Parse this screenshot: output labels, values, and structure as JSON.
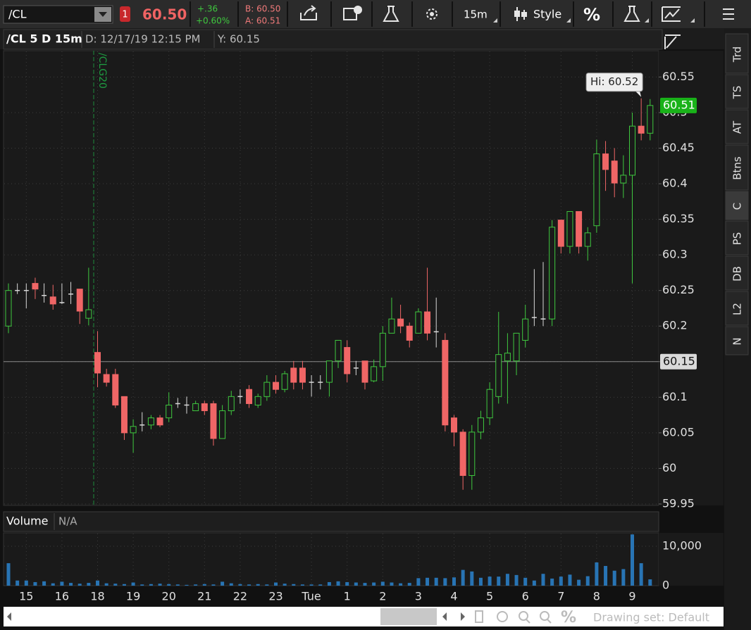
{
  "toolbar": {
    "symbol": "/CL",
    "alert_count": "1",
    "last": "60.50",
    "change": "+.36",
    "change_pct": "+0.60%",
    "bid": "B: 60.50",
    "ask": "A: 60.51",
    "interval": "15m",
    "style": "Style",
    "percent": "%"
  },
  "header": {
    "title": "/CL 5 D 15m",
    "date": "D: 12/17/19 12:15 PM",
    "y_value": "Y: 60.15"
  },
  "side_tabs": [
    "Trd",
    "TS",
    "AT",
    "Btns",
    "C",
    "PS",
    "DB",
    "L2",
    "N"
  ],
  "footer": {
    "drawing_set": "Drawing set: Default",
    "percent": "%"
  },
  "chart_data": [
    {
      "type": "candlestick",
      "categories": [
        null,
        null,
        "15",
        null,
        null,
        null,
        "16",
        null,
        null,
        null,
        "18",
        null,
        null,
        null,
        "19",
        null,
        null,
        null,
        "20",
        null,
        null,
        null,
        "21",
        null,
        null,
        null,
        "22",
        null,
        null,
        null,
        "23",
        null,
        null,
        null,
        "Tue",
        null,
        null,
        null,
        "1",
        null,
        null,
        null,
        "2",
        null,
        null,
        null,
        "3",
        null,
        null,
        null,
        "4",
        null,
        null,
        null,
        "5",
        null,
        null,
        null,
        "6",
        null,
        null,
        null,
        "7",
        null,
        null,
        null,
        "8",
        null,
        null,
        null,
        "9",
        null,
        null
      ],
      "open": [
        60.2,
        60.25,
        60.25,
        60.26,
        60.243,
        60.241,
        60.233,
        60.245,
        60.252,
        60.211,
        60.163,
        60.132,
        60.132,
        60.101,
        60.05,
        60.061,
        60.061,
        60.071,
        60.071,
        60.091,
        60.089,
        60.081,
        60.091,
        60.091,
        60.042,
        60.081,
        60.101,
        60.111,
        60.089,
        60.101,
        60.121,
        60.111,
        60.141,
        60.141,
        60.121,
        60.121,
        60.121,
        60.151,
        60.17,
        60.141,
        60.151,
        60.123,
        60.143,
        60.19,
        60.21,
        60.2,
        60.19,
        60.22,
        60.192,
        60.18,
        60.071,
        60.051,
        59.99,
        60.051,
        60.071,
        60.101,
        60.151,
        60.151,
        60.18,
        60.212,
        60.21,
        60.21,
        60.349,
        60.312,
        60.361,
        60.312,
        60.341,
        60.442,
        60.432,
        60.401,
        60.412,
        60.481,
        60.471
      ],
      "high": [
        60.26,
        60.26,
        60.26,
        60.268,
        60.26,
        60.258,
        60.26,
        60.262,
        60.252,
        60.282,
        60.193,
        60.14,
        60.14,
        60.101,
        60.069,
        60.079,
        60.075,
        60.075,
        60.107,
        60.099,
        60.101,
        60.095,
        60.095,
        60.095,
        60.089,
        60.109,
        60.111,
        60.117,
        60.105,
        60.131,
        60.131,
        60.137,
        60.151,
        60.151,
        60.131,
        60.131,
        60.151,
        60.18,
        60.18,
        60.151,
        60.151,
        60.153,
        60.2,
        60.24,
        60.23,
        60.205,
        60.225,
        60.282,
        60.24,
        60.19,
        60.075,
        60.055,
        60.061,
        60.081,
        60.121,
        60.22,
        60.19,
        60.19,
        60.23,
        60.28,
        60.29,
        60.349,
        60.349,
        60.361,
        60.361,
        60.339,
        60.462,
        60.46,
        60.45,
        60.44,
        60.5,
        60.52,
        60.519
      ],
      "low": [
        60.19,
        60.245,
        60.225,
        60.238,
        60.233,
        60.223,
        60.231,
        60.231,
        60.203,
        60.201,
        60.114,
        60.115,
        60.085,
        60.04,
        60.022,
        60.052,
        60.055,
        60.058,
        60.065,
        60.085,
        60.077,
        60.085,
        60.075,
        60.032,
        60.042,
        60.075,
        60.091,
        60.085,
        60.085,
        60.095,
        60.105,
        60.107,
        60.111,
        60.111,
        60.101,
        60.111,
        60.101,
        60.141,
        60.121,
        60.131,
        60.111,
        60.121,
        60.123,
        60.19,
        60.19,
        60.17,
        60.19,
        60.18,
        60.17,
        60.052,
        60.031,
        59.97,
        59.97,
        60.041,
        60.061,
        60.091,
        60.091,
        60.131,
        60.17,
        60.2,
        60.2,
        60.2,
        60.302,
        60.302,
        60.302,
        60.292,
        60.331,
        60.39,
        60.381,
        60.38,
        60.26,
        60.461,
        60.461
      ],
      "close": [
        60.25,
        60.25,
        60.25,
        60.252,
        60.243,
        60.231,
        60.233,
        60.245,
        60.221,
        60.223,
        60.134,
        60.121,
        60.089,
        60.05,
        60.059,
        60.061,
        60.071,
        60.061,
        60.089,
        60.091,
        60.089,
        60.091,
        60.081,
        60.042,
        60.081,
        60.101,
        60.101,
        60.091,
        60.101,
        60.121,
        60.111,
        60.133,
        60.121,
        60.121,
        60.121,
        60.121,
        60.151,
        60.18,
        60.133,
        60.141,
        60.121,
        60.143,
        60.19,
        60.21,
        60.2,
        60.18,
        60.22,
        60.19,
        60.192,
        60.061,
        60.051,
        59.99,
        60.051,
        60.071,
        60.111,
        60.16,
        60.162,
        60.19,
        60.21,
        60.212,
        60.21,
        60.339,
        60.312,
        60.361,
        60.312,
        60.331,
        60.442,
        60.42,
        60.401,
        60.412,
        60.481,
        60.471,
        60.51
      ],
      "up_color": "#3fc83f",
      "down_color": "#f06666",
      "doji_color": "#d8d8d8",
      "ylim": [
        59.948,
        60.587
      ],
      "yticks": [
        59.95,
        60,
        60.05,
        60.1,
        60.15,
        60.2,
        60.25,
        60.3,
        60.35,
        60.4,
        60.45,
        60.5,
        60.55
      ],
      "grid": true,
      "annotation": "/CLG20",
      "high_label": {
        "value": 60.52,
        "label": "Hi: 60.52"
      },
      "last_price": 60.51,
      "cursor_price": 60.15
    },
    {
      "type": "bar",
      "title": "Volume",
      "subtitle": "N/A",
      "values": [
        5700,
        1300,
        1300,
        900,
        1100,
        600,
        1000,
        700,
        500,
        700,
        1300,
        600,
        500,
        400,
        800,
        300,
        400,
        500,
        400,
        300,
        200,
        300,
        400,
        300,
        1000,
        600,
        400,
        300,
        400,
        300,
        800,
        500,
        400,
        300,
        300,
        300,
        900,
        1100,
        900,
        800,
        700,
        800,
        1000,
        800,
        600,
        700,
        1900,
        2000,
        2000,
        1900,
        2100,
        4000,
        3600,
        2000,
        2300,
        2300,
        3000,
        2700,
        2000,
        1300,
        3000,
        1800,
        2300,
        2800,
        1500,
        2400,
        5900,
        5000,
        3800,
        4200,
        13000,
        5700,
        1600
      ],
      "color": "#2874b4",
      "ylim": [
        0,
        13400
      ],
      "yticks": [
        0,
        {
          "value": 10000,
          "label": "10,000"
        }
      ],
      "grid": true
    }
  ]
}
